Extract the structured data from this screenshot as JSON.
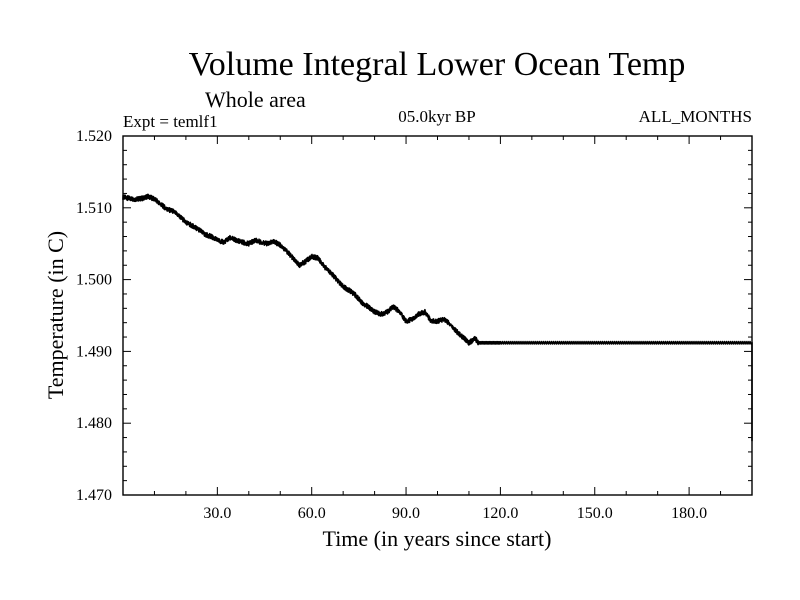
{
  "chart_data": {
    "type": "line",
    "title": "Volume Integral Lower Ocean Temp",
    "subtitle": "Whole area",
    "experiment_label": "Expt = temlf1",
    "period_label": "05.0kyr BP",
    "months_label": "ALL_MONTHS",
    "xlabel": "Time (in years since start)",
    "ylabel": "Temperature (in C)",
    "xlim": [
      0,
      200
    ],
    "ylim": [
      1.47,
      1.52
    ],
    "x_ticks": [
      30,
      60,
      90,
      120,
      150,
      180
    ],
    "x_tick_labels": [
      "30.0",
      "60.0",
      "90.0",
      "120.0",
      "150.0",
      "180.0"
    ],
    "y_ticks": [
      1.47,
      1.48,
      1.49,
      1.5,
      1.51,
      1.52
    ],
    "y_tick_labels": [
      "1.470",
      "1.480",
      "1.490",
      "1.500",
      "1.510",
      "1.520"
    ],
    "grid": false,
    "series": [
      {
        "name": "temlf1",
        "x": [
          0,
          2,
          4,
          6,
          8,
          10,
          12,
          14,
          16,
          18,
          20,
          22,
          24,
          26,
          28,
          30,
          32,
          34,
          36,
          38,
          40,
          42,
          44,
          46,
          48,
          50,
          52,
          54,
          56,
          58,
          60,
          62,
          64,
          66,
          68,
          70,
          72,
          74,
          76,
          78,
          80,
          82,
          84,
          86,
          88,
          90,
          92,
          94,
          96,
          98,
          100,
          102,
          104,
          106,
          108,
          110,
          112,
          113,
          120,
          130,
          140,
          150,
          160,
          170,
          180,
          190,
          200
        ],
        "values": [
          1.5115,
          1.5113,
          1.5112,
          1.5113,
          1.5116,
          1.5112,
          1.5105,
          1.5098,
          1.5095,
          1.5088,
          1.508,
          1.5075,
          1.507,
          1.5063,
          1.506,
          1.5055,
          1.5052,
          1.5058,
          1.5055,
          1.5052,
          1.505,
          1.5055,
          1.5052,
          1.505,
          1.5053,
          1.5048,
          1.504,
          1.503,
          1.502,
          1.5025,
          1.5032,
          1.503,
          1.5018,
          1.501,
          1.5,
          1.499,
          1.4985,
          1.4978,
          1.4968,
          1.4962,
          1.4955,
          1.4952,
          1.4955,
          1.4962,
          1.4955,
          1.4942,
          1.4945,
          1.4952,
          1.4955,
          1.4942,
          1.4942,
          1.4945,
          1.4938,
          1.4928,
          1.492,
          1.4912,
          1.4918,
          1.4912,
          1.4912,
          1.4912,
          1.4912,
          1.4912,
          1.4912,
          1.4912,
          1.4912,
          1.4912,
          1.4912
        ]
      }
    ]
  }
}
